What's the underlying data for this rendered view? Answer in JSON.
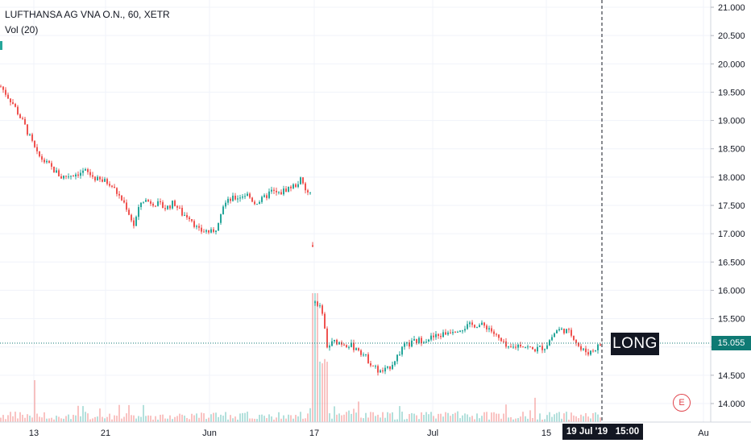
{
  "legend": {
    "title": "LUFTHANSA AG VNA O.N., 60, XETR",
    "indicator": "Vol (20)"
  },
  "chart_data": {
    "type": "candlestick",
    "symbol": "LUFTHANSA AG VNA O.N.",
    "interval": "60",
    "exchange": "XETR",
    "ylim": [
      13.8,
      21.1
    ],
    "y_ticks": [
      "21.000",
      "20.500",
      "20.000",
      "19.500",
      "19.000",
      "18.500",
      "18.000",
      "17.500",
      "17.000",
      "16.500",
      "16.000",
      "15.500",
      "15.000",
      "14.500",
      "14.000"
    ],
    "x_ticks": [
      "13",
      "21",
      "Jun",
      "17",
      "Jul",
      "15",
      "Au"
    ],
    "current_price": "15.055",
    "crosshair_time": "19 Jul '19",
    "crosshair_hour": "15:00",
    "price_path": [
      {
        "i": 0,
        "p": 19.6
      },
      {
        "i": 15,
        "p": 19.3
      },
      {
        "i": 30,
        "p": 18.9
      },
      {
        "i": 45,
        "p": 18.4
      },
      {
        "i": 60,
        "p": 18.2
      },
      {
        "i": 75,
        "p": 18.0
      },
      {
        "i": 90,
        "p": 18.05
      },
      {
        "i": 105,
        "p": 18.1
      },
      {
        "i": 120,
        "p": 17.95
      },
      {
        "i": 135,
        "p": 17.9
      },
      {
        "i": 145,
        "p": 17.7
      },
      {
        "i": 155,
        "p": 17.5
      },
      {
        "i": 165,
        "p": 17.15
      },
      {
        "i": 175,
        "p": 17.6
      },
      {
        "i": 190,
        "p": 17.55
      },
      {
        "i": 205,
        "p": 17.45
      },
      {
        "i": 215,
        "p": 17.55
      },
      {
        "i": 225,
        "p": 17.35
      },
      {
        "i": 235,
        "p": 17.3
      },
      {
        "i": 245,
        "p": 17.05
      },
      {
        "i": 255,
        "p": 17.05
      },
      {
        "i": 265,
        "p": 17.0
      },
      {
        "i": 275,
        "p": 17.5
      },
      {
        "i": 285,
        "p": 17.6
      },
      {
        "i": 295,
        "p": 17.65
      },
      {
        "i": 305,
        "p": 17.7
      },
      {
        "i": 315,
        "p": 17.55
      },
      {
        "i": 325,
        "p": 17.6
      },
      {
        "i": 335,
        "p": 17.75
      },
      {
        "i": 345,
        "p": 17.7
      },
      {
        "i": 355,
        "p": 17.8
      },
      {
        "i": 365,
        "p": 17.85
      },
      {
        "i": 372,
        "p": 17.95
      },
      {
        "i": 378,
        "p": 17.75
      },
      {
        "i": 385,
        "p": 17.7
      },
      {
        "i": 389,
        "p": 15.8
      },
      {
        "i": 395,
        "p": 15.75
      },
      {
        "i": 400,
        "p": 15.5
      },
      {
        "i": 405,
        "p": 15.0
      },
      {
        "i": 415,
        "p": 15.1
      },
      {
        "i": 430,
        "p": 15.05
      },
      {
        "i": 445,
        "p": 14.95
      },
      {
        "i": 460,
        "p": 14.7
      },
      {
        "i": 470,
        "p": 14.55
      },
      {
        "i": 480,
        "p": 14.6
      },
      {
        "i": 490,
        "p": 14.8
      },
      {
        "i": 500,
        "p": 15.0
      },
      {
        "i": 515,
        "p": 15.1
      },
      {
        "i": 530,
        "p": 15.15
      },
      {
        "i": 545,
        "p": 15.2
      },
      {
        "i": 560,
        "p": 15.3
      },
      {
        "i": 575,
        "p": 15.35
      },
      {
        "i": 590,
        "p": 15.4
      },
      {
        "i": 605,
        "p": 15.35
      },
      {
        "i": 620,
        "p": 15.1
      },
      {
        "i": 630,
        "p": 14.95
      },
      {
        "i": 645,
        "p": 15.05
      },
      {
        "i": 660,
        "p": 14.95
      },
      {
        "i": 675,
        "p": 15.0
      },
      {
        "i": 690,
        "p": 15.3
      },
      {
        "i": 700,
        "p": 15.3
      },
      {
        "i": 710,
        "p": 15.2
      },
      {
        "i": 720,
        "p": 14.95
      },
      {
        "i": 730,
        "p": 14.9
      },
      {
        "i": 745,
        "p": 15.05
      }
    ],
    "series": [
      {
        "type": "candles",
        "color_up": "#26a69a",
        "color_down": "#ef5350"
      },
      {
        "type": "volume"
      }
    ]
  },
  "overlays": {
    "long_label": "LONG",
    "earnings_badge": "E"
  },
  "colors": {
    "up": "#26a69a",
    "down": "#ef5350",
    "grid": "#f0f3fa",
    "crosshair": "#131722",
    "price_line": "#0f7a74"
  }
}
